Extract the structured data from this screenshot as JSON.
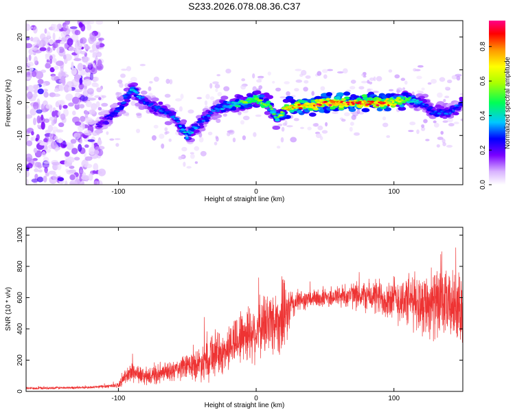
{
  "title": "S233.2026.078.08.36.C37",
  "chart_data": [
    {
      "type": "heatmap",
      "xlabel": "Height of straight line (km)",
      "ylabel": "Frequency (Hz)",
      "xlim": [
        -167,
        150
      ],
      "ylim": [
        -25,
        25
      ],
      "xticks": [
        -100,
        0,
        100
      ],
      "yticks": [
        -20,
        -10,
        0,
        10,
        20
      ],
      "colorbar": {
        "label": "Normalized spectral amplitude",
        "range": [
          0,
          0.95
        ],
        "ticks": [
          0.0,
          0.2,
          0.4,
          0.6,
          0.8
        ]
      },
      "ridge": {
        "x": [
          -115,
          -100,
          -90,
          -80,
          -70,
          -60,
          -50,
          -40,
          -30,
          -20,
          -10,
          0,
          10,
          15,
          20,
          30,
          40,
          50,
          60,
          70,
          80,
          90,
          100,
          110,
          120,
          130,
          140,
          150
        ],
        "freq": [
          -7,
          -2,
          4,
          0,
          -2,
          -4,
          -10,
          -6,
          -2,
          -1,
          0,
          1,
          -1,
          -5,
          -2,
          -1,
          -1,
          0,
          0,
          0,
          0,
          0,
          0,
          1,
          0,
          -3,
          -3,
          0
        ],
        "amplitude": [
          0.2,
          0.3,
          0.4,
          0.3,
          0.3,
          0.3,
          0.4,
          0.3,
          0.3,
          0.4,
          0.55,
          0.6,
          0.5,
          0.45,
          0.7,
          0.8,
          0.85,
          0.9,
          0.9,
          0.85,
          0.85,
          0.85,
          0.8,
          0.5,
          0.3,
          0.3,
          0.3,
          0.3
        ]
      }
    },
    {
      "type": "line",
      "xlabel": "Height of straight line (km)",
      "ylabel": "SNR (10 * v/v)",
      "xlim": [
        -167,
        150
      ],
      "ylim": [
        0,
        1050
      ],
      "xticks": [
        -100,
        0,
        100
      ],
      "yticks": [
        0,
        200,
        400,
        600,
        800,
        1000
      ],
      "line_color": "#ee3333",
      "envelope": {
        "x": [
          -167,
          -120,
          -100,
          -95,
          -90,
          -85,
          -80,
          -70,
          -60,
          -50,
          -40,
          -35,
          -30,
          -25,
          -20,
          -15,
          -10,
          -5,
          0,
          5,
          10,
          15,
          20,
          25,
          30,
          40,
          50,
          60,
          70,
          80,
          90,
          100,
          110,
          120,
          130,
          140,
          150
        ],
        "mean": [
          20,
          25,
          40,
          90,
          130,
          110,
          90,
          110,
          130,
          160,
          180,
          230,
          250,
          230,
          280,
          330,
          360,
          380,
          380,
          420,
          450,
          450,
          460,
          540,
          580,
          590,
          600,
          610,
          615,
          610,
          600,
          590,
          580,
          570,
          560,
          550,
          540
        ],
        "spread": [
          10,
          10,
          20,
          50,
          90,
          70,
          60,
          70,
          80,
          100,
          130,
          200,
          180,
          150,
          170,
          200,
          220,
          230,
          220,
          240,
          270,
          240,
          280,
          150,
          80,
          70,
          80,
          90,
          100,
          120,
          150,
          180,
          200,
          240,
          260,
          260,
          260
        ]
      }
    }
  ]
}
